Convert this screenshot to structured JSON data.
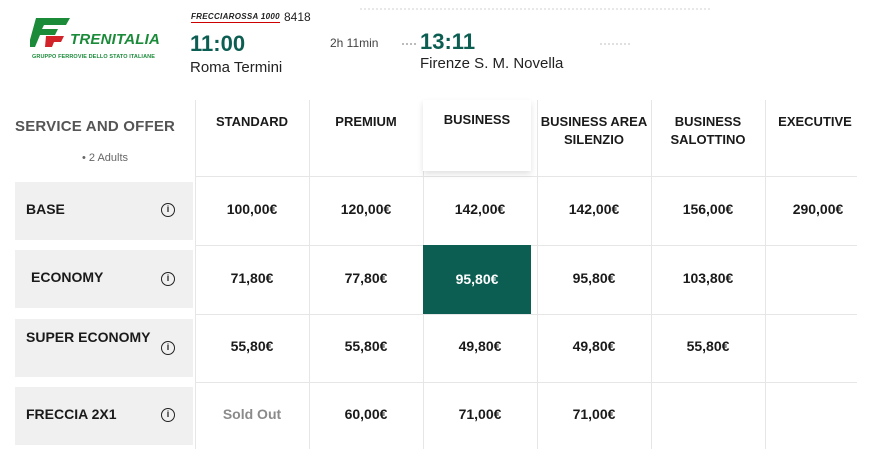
{
  "header": {
    "logo": {
      "word": "TRENITALIA",
      "subtitle": "GRUPPO FERROVIE DELLO STATO ITALIANE"
    },
    "train": {
      "brand": "FRECCIAROSSA 1000",
      "number": "8418"
    },
    "departure": {
      "time": "11:00",
      "station": "Roma Termini"
    },
    "duration": "2h 11min",
    "arrival": {
      "time": "13:11",
      "station": "Firenze S. M. Novella"
    }
  },
  "offers": {
    "service_header": "SERVICE AND OFFER",
    "passengers": "• 2 Adults",
    "columns": [
      {
        "label": "STANDARD"
      },
      {
        "label": "PREMIUM"
      },
      {
        "label": "BUSINESS"
      },
      {
        "label": "BUSINESS AREA SILENZIO"
      },
      {
        "label": "BUSINESS SALOTTINO"
      },
      {
        "label": "EXECUTIVE"
      }
    ],
    "rows": [
      {
        "label": "BASE",
        "info": "i",
        "prices": [
          "100,00€",
          "120,00€",
          "142,00€",
          "142,00€",
          "156,00€",
          "290,00€"
        ]
      },
      {
        "label": "ECONOMY",
        "info": "i",
        "prices": [
          "71,80€",
          "77,80€",
          "95,80€",
          "95,80€",
          "103,80€",
          ""
        ]
      },
      {
        "label": "SUPER ECONOMY",
        "info": "i",
        "prices": [
          "55,80€",
          "55,80€",
          "49,80€",
          "49,80€",
          "55,80€",
          ""
        ]
      },
      {
        "label": "FRECCIA 2X1",
        "info": "i",
        "prices": [
          "Sold Out",
          "60,00€",
          "71,00€",
          "71,00€",
          "",
          ""
        ]
      }
    ],
    "selected": {
      "row": "ECONOMY",
      "column": "BUSINESS",
      "price": "95,80€"
    }
  },
  "colors": {
    "accent": "#0d5e52",
    "label_bg": "#f0f0f0",
    "logo_green": "#1b8b3a",
    "logo_red": "#d2232a"
  }
}
